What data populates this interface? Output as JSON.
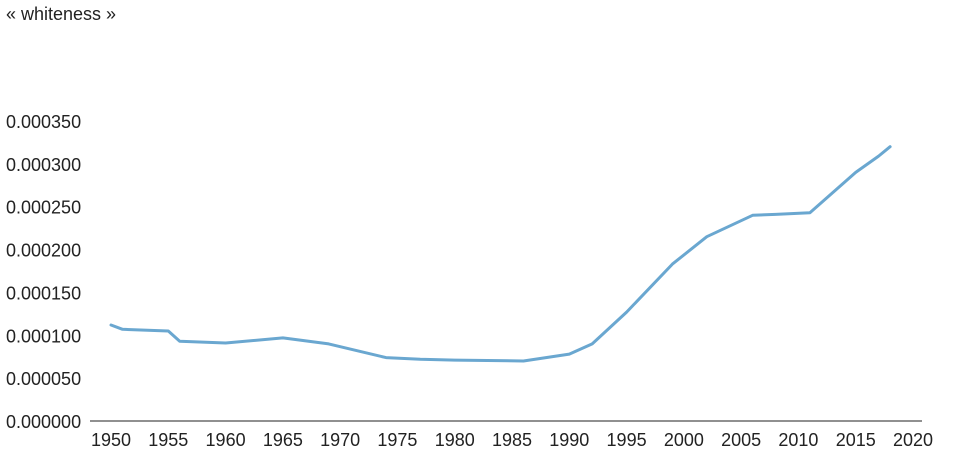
{
  "chart_data": {
    "type": "line",
    "title": "« whiteness »",
    "xlabel": "",
    "ylabel": "",
    "x_ticks": [
      "1950",
      "1955",
      "1960",
      "1965",
      "1970",
      "1975",
      "1980",
      "1985",
      "1990",
      "1995",
      "2000",
      "2005",
      "2010",
      "2015",
      "2020"
    ],
    "y_ticks": [
      "0.000000",
      "0.000050",
      "0.000100",
      "0.000150",
      "0.000200",
      "0.000250",
      "0.000300",
      "0.000350"
    ],
    "xlim": [
      1950,
      2020
    ],
    "ylim": [
      0,
      0.00035
    ],
    "grid": false,
    "legend": "none",
    "series": [
      {
        "color": "#6aa7d0",
        "x": [
          1950,
          1951,
          1955,
          1956,
          1960,
          1965,
          1969,
          1974,
          1977,
          1980,
          1986,
          1990,
          1992,
          1995,
          1999,
          2002,
          2006,
          2008,
          2011,
          2015,
          2017,
          2018
        ],
        "y": [
          0.000112,
          0.000107,
          0.000105,
          9.3e-05,
          9.1e-05,
          9.7e-05,
          9e-05,
          7.4e-05,
          7.2e-05,
          7.1e-05,
          7e-05,
          7.8e-05,
          9e-05,
          0.000127,
          0.000183,
          0.000215,
          0.00024,
          0.000241,
          0.000243,
          0.00029,
          0.000309,
          0.00032
        ]
      }
    ]
  }
}
